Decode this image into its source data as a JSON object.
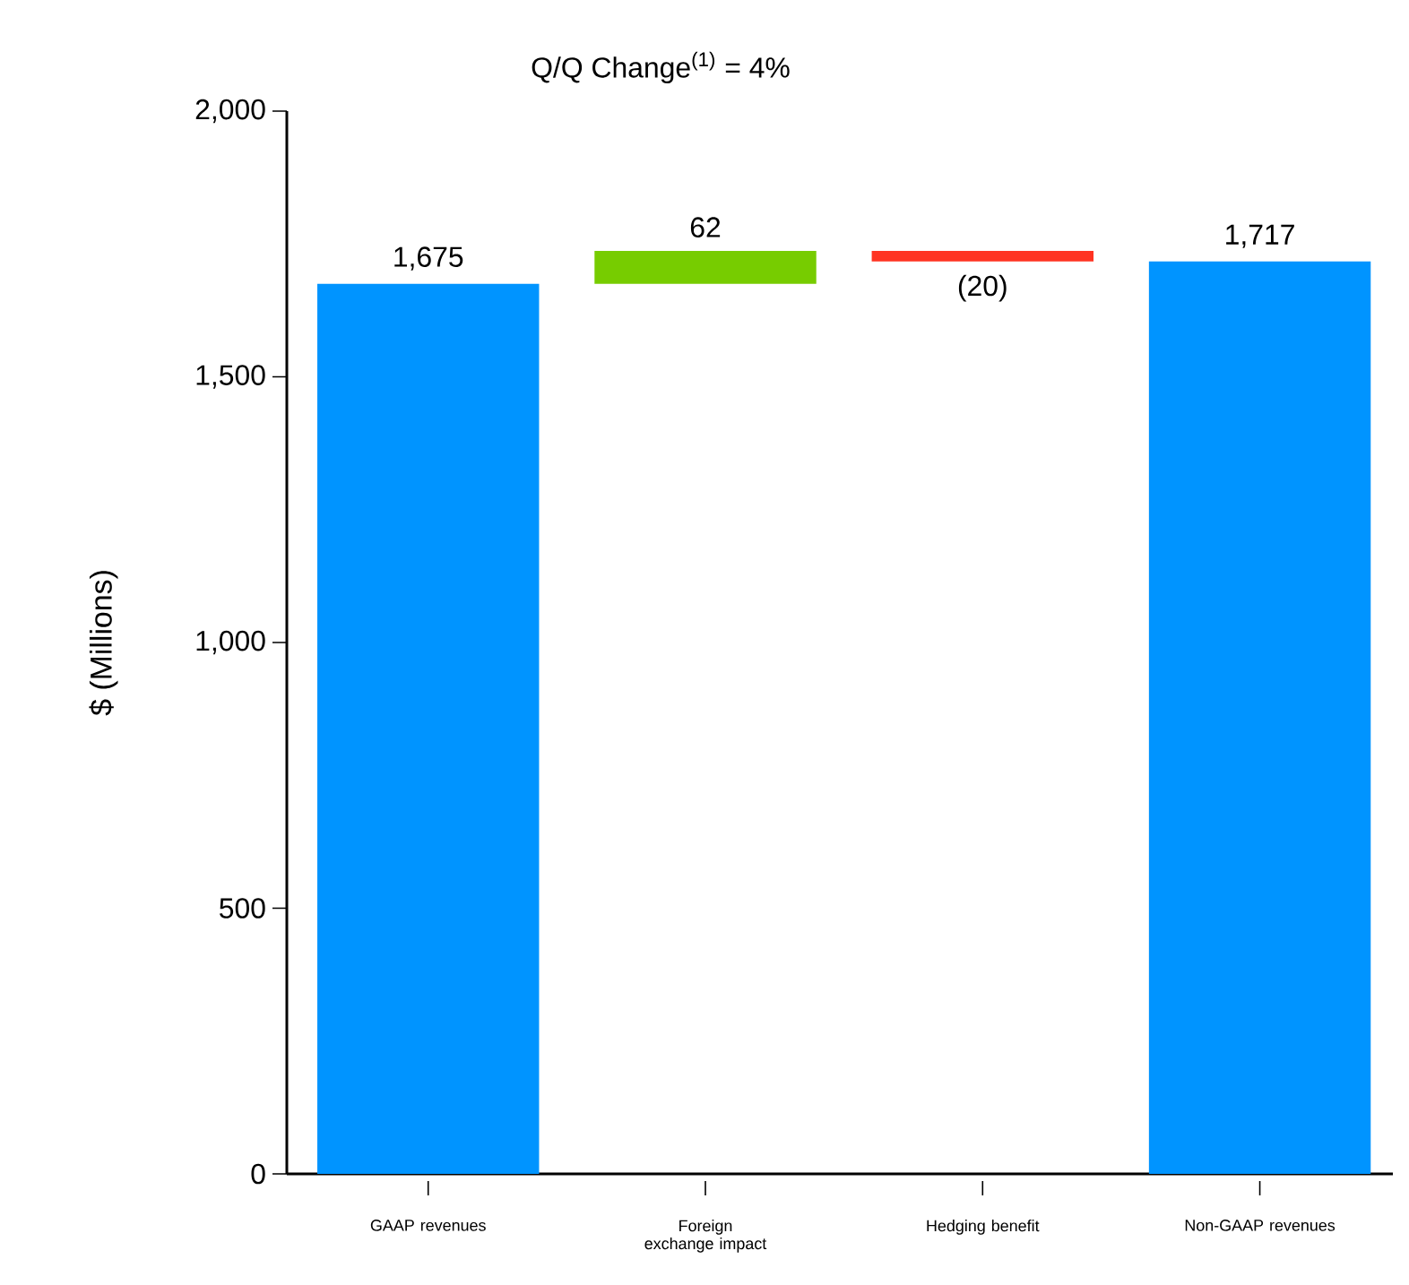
{
  "chart_data": {
    "type": "bar",
    "title": "Q/Q Change$^{(1)}$ = 4%",
    "ylabel": "$ (Millions)",
    "categories": [
      "GAAP revenues",
      "Foreign exchange impact",
      "Hedging benefit",
      "Non-GAAP revenues"
    ],
    "values": [
      1675,
      62,
      -20,
      1717
    ],
    "base": [
      0,
      1675,
      1737,
      0
    ],
    "colors": [
      "#0094ff",
      "#77cc00",
      "#ff3322",
      "#0094ff"
    ],
    "value_labels": [
      "1,675",
      "62",
      "(20)",
      "1,717"
    ],
    "ylim": [
      0,
      2000
    ],
    "yticks": [
      {
        "value": 0,
        "label": "0"
      },
      {
        "value": 500,
        "label": "500"
      },
      {
        "value": 1000,
        "label": "1,000"
      },
      {
        "value": 1500,
        "label": "1,500"
      },
      {
        "value": 2000,
        "label": "2,000"
      }
    ]
  }
}
